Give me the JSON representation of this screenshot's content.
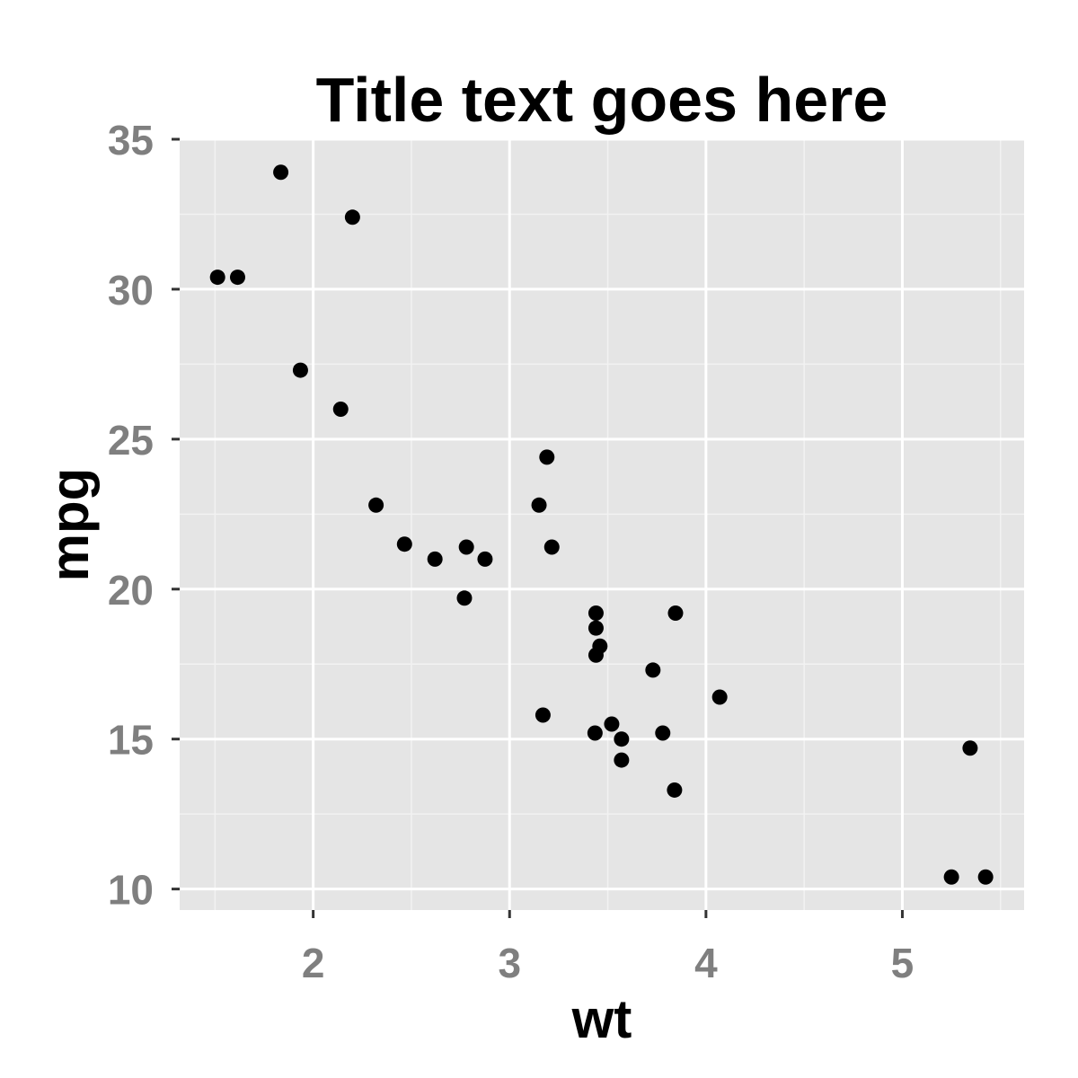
{
  "chart_data": {
    "type": "scatter",
    "title": "Title text goes here",
    "xlabel": "wt",
    "ylabel": "mpg",
    "xlim": [
      1.32,
      5.62
    ],
    "ylim": [
      9.3,
      35.0
    ],
    "x_ticks": [
      2,
      3,
      4,
      5
    ],
    "y_ticks": [
      10,
      15,
      20,
      25,
      30,
      35
    ],
    "x_tick_labels": [
      "2",
      "3",
      "4",
      "5"
    ],
    "y_tick_labels": [
      "10",
      "15",
      "20",
      "25",
      "30",
      "35"
    ],
    "grid": true,
    "legend": "none",
    "colors": {
      "panel": "#e5e5e5",
      "grid_major": "#ffffff",
      "grid_minor": "#f2f2f2",
      "point": "#000000",
      "tick_text": "#7f7f7f"
    },
    "points": [
      {
        "x": 2.62,
        "y": 21.0
      },
      {
        "x": 2.875,
        "y": 21.0
      },
      {
        "x": 2.32,
        "y": 22.8
      },
      {
        "x": 3.215,
        "y": 21.4
      },
      {
        "x": 3.44,
        "y": 18.7
      },
      {
        "x": 3.46,
        "y": 18.1
      },
      {
        "x": 3.57,
        "y": 14.3
      },
      {
        "x": 3.19,
        "y": 24.4
      },
      {
        "x": 3.15,
        "y": 22.8
      },
      {
        "x": 3.44,
        "y": 19.2
      },
      {
        "x": 3.44,
        "y": 17.8
      },
      {
        "x": 4.07,
        "y": 16.4
      },
      {
        "x": 3.73,
        "y": 17.3
      },
      {
        "x": 3.78,
        "y": 15.2
      },
      {
        "x": 5.25,
        "y": 10.4
      },
      {
        "x": 5.424,
        "y": 10.4
      },
      {
        "x": 5.345,
        "y": 14.7
      },
      {
        "x": 2.2,
        "y": 32.4
      },
      {
        "x": 1.615,
        "y": 30.4
      },
      {
        "x": 1.835,
        "y": 33.9
      },
      {
        "x": 2.465,
        "y": 21.5
      },
      {
        "x": 3.52,
        "y": 15.5
      },
      {
        "x": 3.435,
        "y": 15.2
      },
      {
        "x": 3.84,
        "y": 13.3
      },
      {
        "x": 3.845,
        "y": 19.2
      },
      {
        "x": 1.935,
        "y": 27.3
      },
      {
        "x": 2.14,
        "y": 26.0
      },
      {
        "x": 1.513,
        "y": 30.4
      },
      {
        "x": 3.17,
        "y": 15.8
      },
      {
        "x": 2.77,
        "y": 19.7
      },
      {
        "x": 3.57,
        "y": 15.0
      },
      {
        "x": 2.78,
        "y": 21.4
      }
    ]
  }
}
